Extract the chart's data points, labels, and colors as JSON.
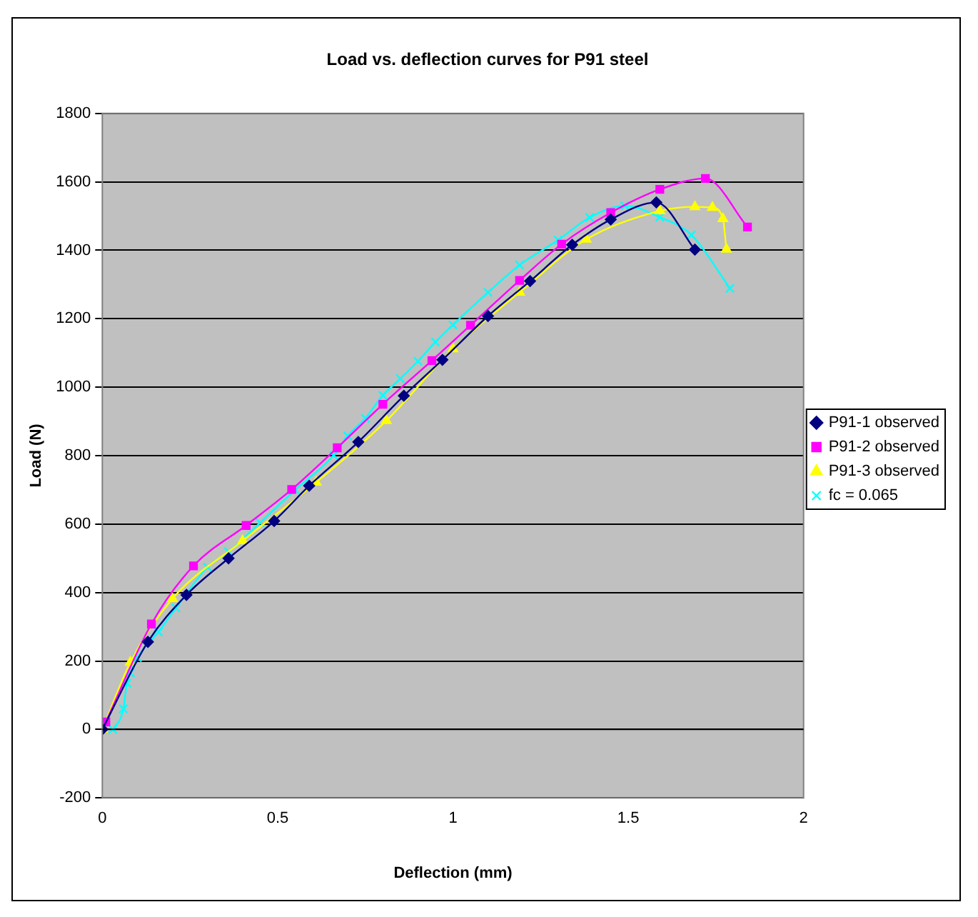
{
  "chart_data": {
    "type": "line",
    "title": "Load vs. deflection curves for P91 steel",
    "xlabel": "Deflection (mm)",
    "ylabel": "Load (N)",
    "xlim": [
      0,
      2
    ],
    "xticks": [
      0,
      0.5,
      1,
      1.5,
      2
    ],
    "ylim": [
      -200,
      1800
    ],
    "yticks": [
      -200,
      0,
      200,
      400,
      600,
      800,
      1000,
      1200,
      1400,
      1600,
      1800
    ],
    "grid": "y",
    "legend": "right",
    "line_style": "solid",
    "series": [
      {
        "name": "P91-1 observed",
        "color": "#000080",
        "marker": "diamond",
        "x": [
          0,
          0.13,
          0.24,
          0.36,
          0.49,
          0.59,
          0.73,
          0.86,
          0.97,
          1.1,
          1.22,
          1.34,
          1.45,
          1.58,
          1.69
        ],
        "values": [
          0,
          256,
          393,
          500,
          609,
          712,
          840,
          975,
          1080,
          1208,
          1310,
          1416,
          1490,
          1540,
          1402
        ]
      },
      {
        "name": "P91-2 observed",
        "color": "#ff00ff",
        "marker": "square",
        "x": [
          0.01,
          0.14,
          0.26,
          0.41,
          0.54,
          0.67,
          0.8,
          0.94,
          1.05,
          1.19,
          1.31,
          1.45,
          1.59,
          1.72,
          1.84
        ],
        "values": [
          22,
          308,
          478,
          596,
          701,
          823,
          950,
          1078,
          1181,
          1312,
          1418,
          1510,
          1578,
          1610,
          1468
        ]
      },
      {
        "name": "P91-3 observed",
        "color": "#ffff00",
        "marker": "triangle",
        "x": [
          0,
          0.08,
          0.2,
          0.4,
          0.61,
          0.81,
          1,
          1.19,
          1.38,
          1.59,
          1.69,
          1.74,
          1.77,
          1.78
        ],
        "values": [
          0,
          196,
          382,
          551,
          722,
          902,
          1112,
          1277,
          1432,
          1515,
          1527,
          1525,
          1492,
          1403
        ]
      },
      {
        "name": "fc = 0.065",
        "color": "#00ffff",
        "marker": "cross",
        "x": [
          0.03,
          0.06,
          0.07,
          0.08,
          0.1,
          0.16,
          0.21,
          0.3,
          0.36,
          0.45,
          0.55,
          0.66,
          0.7,
          0.75,
          0.8,
          0.85,
          0.9,
          0.95,
          1,
          1.1,
          1.19,
          1.3,
          1.39,
          1.49,
          1.59,
          1.68,
          1.79
        ],
        "values": [
          0,
          60,
          135,
          165,
          210,
          285,
          355,
          474,
          519,
          604,
          700,
          801,
          858,
          909,
          976,
          1025,
          1076,
          1132,
          1182,
          1277,
          1357,
          1430,
          1496,
          1530,
          1497,
          1445,
          1289
        ]
      }
    ]
  }
}
